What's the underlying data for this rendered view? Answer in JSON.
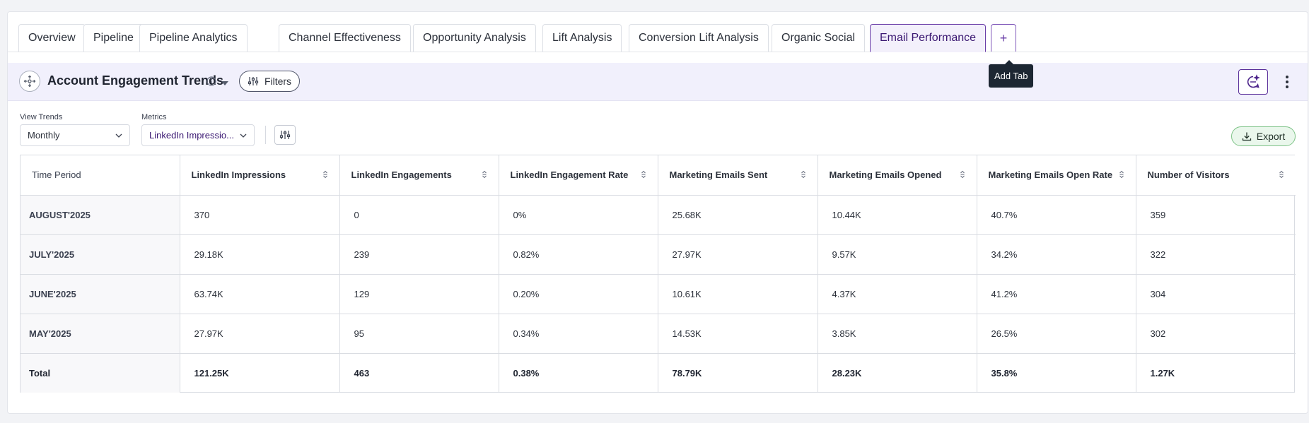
{
  "tabs": [
    {
      "label": "Overview"
    },
    {
      "label": "Pipeline"
    },
    {
      "label": "Pipeline Analytics"
    },
    {
      "label": "Channel Effectiveness"
    },
    {
      "label": "Opportunity Analysis"
    },
    {
      "label": "Lift Analysis"
    },
    {
      "label": "Conversion Lift Analysis"
    },
    {
      "label": "Organic Social"
    },
    {
      "label": "Email Performance"
    }
  ],
  "add_tab": {
    "symbol": "+",
    "tooltip": "Add Tab"
  },
  "header": {
    "title": "Account Engagement Trends",
    "filters_label": "Filters"
  },
  "controls": {
    "view_trends": {
      "label": "View Trends",
      "value": "Monthly"
    },
    "metrics": {
      "label": "Metrics",
      "value": "LinkedIn Impressio..."
    },
    "export_label": "Export"
  },
  "table": {
    "columns": [
      "Time Period",
      "LinkedIn Impressions",
      "LinkedIn Engagements",
      "LinkedIn Engagement Rate",
      "Marketing Emails Sent",
      "Marketing Emails Opened",
      "Marketing Emails Open Rate",
      "Number of Visitors"
    ],
    "rows": [
      [
        "AUGUST'2025",
        "370",
        "0",
        "0%",
        "25.68K",
        "10.44K",
        "40.7%",
        "359"
      ],
      [
        "JULY'2025",
        "29.18K",
        "239",
        "0.82%",
        "27.97K",
        "9.57K",
        "34.2%",
        "322"
      ],
      [
        "JUNE'2025",
        "63.74K",
        "129",
        "0.20%",
        "10.61K",
        "4.37K",
        "41.2%",
        "304"
      ],
      [
        "MAY'2025",
        "27.97K",
        "95",
        "0.34%",
        "14.53K",
        "3.85K",
        "26.5%",
        "302"
      ]
    ],
    "total": [
      "Total",
      "121.25K",
      "463",
      "0.38%",
      "78.79K",
      "28.23K",
      "35.8%",
      "1.27K"
    ]
  },
  "colors": {
    "accent": "#6b3fa8",
    "header_bg": "#f1f0fc",
    "export_green": "#7ec387",
    "tooltip_bg": "#1d2733"
  }
}
